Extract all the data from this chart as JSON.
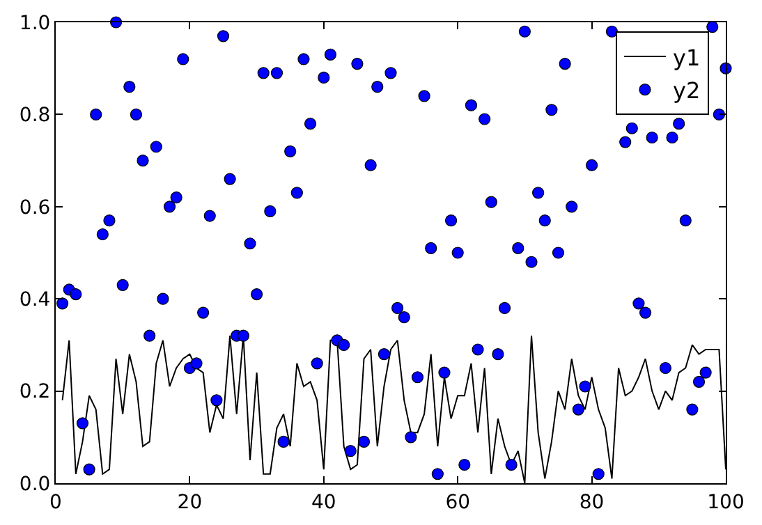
{
  "chart_data": {
    "type": "line",
    "xlim": [
      0,
      100
    ],
    "ylim": [
      0,
      1
    ],
    "xticks": [
      0,
      20,
      40,
      60,
      80,
      100
    ],
    "yticks": [
      {
        "value": 0,
        "label": "0.0"
      },
      {
        "value": 0.2,
        "label": "0.2"
      },
      {
        "value": 0.4,
        "label": "0.4"
      },
      {
        "value": 0.6,
        "label": "0.6"
      },
      {
        "value": 0.8,
        "label": "0.8"
      },
      {
        "value": 1,
        "label": "1.0"
      }
    ],
    "grid": false,
    "legend": "top right",
    "series": [
      {
        "name": "y1",
        "color": "#000000",
        "marker": "none",
        "line_style": "solid",
        "x": [
          1,
          2,
          3,
          4,
          5,
          6,
          7,
          8,
          9,
          10,
          11,
          12,
          13,
          14,
          15,
          16,
          17,
          18,
          19,
          20,
          21,
          22,
          23,
          24,
          25,
          26,
          27,
          28,
          29,
          30,
          31,
          32,
          33,
          34,
          35,
          36,
          37,
          38,
          39,
          40,
          41,
          42,
          43,
          44,
          45,
          46,
          47,
          48,
          49,
          50,
          51,
          52,
          53,
          54,
          55,
          56,
          57,
          58,
          59,
          60,
          61,
          62,
          63,
          64,
          65,
          66,
          67,
          68,
          69,
          70,
          71,
          72,
          73,
          74,
          75,
          76,
          77,
          78,
          79,
          80,
          81,
          82,
          83,
          84,
          85,
          86,
          87,
          88,
          89,
          90,
          91,
          92,
          93,
          94,
          95,
          96,
          97,
          98,
          99,
          100
        ],
        "values": [
          0.18,
          0.31,
          0.02,
          0.09,
          0.19,
          0.16,
          0.02,
          0.03,
          0.27,
          0.15,
          0.28,
          0.22,
          0.08,
          0.09,
          0.26,
          0.31,
          0.21,
          0.25,
          0.27,
          0.28,
          0.25,
          0.24,
          0.11,
          0.17,
          0.14,
          0.32,
          0.15,
          0.32,
          0.05,
          0.24,
          0.02,
          0.02,
          0.12,
          0.15,
          0.08,
          0.26,
          0.21,
          0.22,
          0.18,
          0.03,
          0.31,
          0.31,
          0.08,
          0.03,
          0.04,
          0.27,
          0.29,
          0.08,
          0.21,
          0.29,
          0.31,
          0.18,
          0.11,
          0.11,
          0.15,
          0.28,
          0.08,
          0.23,
          0.14,
          0.19,
          0.19,
          0.26,
          0.11,
          0.25,
          0.02,
          0.14,
          0.08,
          0.04,
          0.07,
          0.0,
          0.32,
          0.11,
          0.01,
          0.09,
          0.2,
          0.16,
          0.27,
          0.19,
          0.16,
          0.23,
          0.16,
          0.12,
          0.01,
          0.25,
          0.19,
          0.2,
          0.23,
          0.27,
          0.2,
          0.16,
          0.2,
          0.18,
          0.24,
          0.25,
          0.3,
          0.28,
          0.29,
          0.29,
          0.29,
          0.03
        ]
      },
      {
        "type": "scatter",
        "name": "y2",
        "color": "#0000ff",
        "marker": "circle",
        "x": [
          1,
          2,
          3,
          4,
          5,
          6,
          7,
          8,
          9,
          10,
          11,
          12,
          13,
          14,
          15,
          16,
          17,
          18,
          19,
          20,
          21,
          22,
          23,
          24,
          25,
          26,
          27,
          28,
          29,
          30,
          31,
          32,
          33,
          34,
          35,
          36,
          37,
          38,
          39,
          40,
          41,
          42,
          43,
          44,
          45,
          46,
          47,
          48,
          49,
          50,
          51,
          52,
          53,
          54,
          55,
          56,
          57,
          58,
          59,
          60,
          61,
          62,
          63,
          64,
          65,
          66,
          67,
          68,
          69,
          70,
          71,
          72,
          73,
          74,
          75,
          76,
          77,
          78,
          79,
          80,
          81,
          82,
          83,
          84,
          85,
          86,
          87,
          88,
          89,
          90,
          91,
          92,
          93,
          94,
          95,
          96,
          97,
          98,
          99,
          100
        ],
        "values": [
          0.39,
          0.42,
          0.41,
          0.13,
          0.03,
          0.8,
          0.54,
          0.57,
          1.0,
          0.43,
          0.86,
          0.8,
          0.7,
          0.32,
          0.73,
          0.4,
          0.6,
          0.62,
          0.92,
          0.25,
          0.26,
          0.37,
          0.58,
          0.18,
          0.97,
          0.66,
          0.32,
          0.32,
          0.52,
          0.41,
          0.89,
          0.59,
          0.89,
          0.09,
          0.72,
          0.63,
          0.92,
          0.78,
          0.26,
          0.88,
          0.93,
          0.31,
          0.3,
          0.07,
          0.91,
          0.09,
          0.69,
          0.86,
          0.28,
          0.89,
          0.38,
          0.36,
          0.1,
          0.23,
          0.84,
          0.51,
          0.02,
          0.24,
          0.57,
          0.5,
          0.04,
          0.82,
          0.29,
          0.79,
          0.61,
          0.28,
          0.38,
          0.04,
          0.51,
          0.98,
          0.48,
          0.63,
          0.57,
          0.81,
          0.5,
          0.91,
          0.6,
          0.16,
          0.21,
          0.69,
          0.02,
          null,
          0.98,
          null,
          0.74,
          0.77,
          0.39,
          0.37,
          0.75,
          null,
          0.25,
          0.75,
          0.78,
          0.57,
          0.16,
          0.22,
          0.24,
          0.99,
          0.8,
          0.9
        ]
      }
    ]
  }
}
